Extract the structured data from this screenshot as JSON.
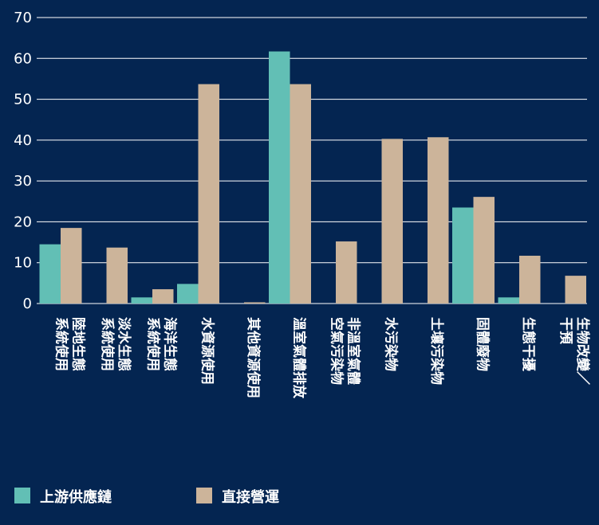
{
  "chart_data": {
    "type": "bar",
    "ylim": [
      0,
      70
    ],
    "yticks": [
      0,
      10,
      20,
      30,
      40,
      50,
      60,
      70
    ],
    "grid": true,
    "legend_position": "bottom-left",
    "categories": [
      [
        "陸地生態",
        "系統使用"
      ],
      [
        "淡水生態",
        "系統使用"
      ],
      [
        "海洋生態",
        "系統使用"
      ],
      [
        "水資源使用"
      ],
      [
        "其他資源使用"
      ],
      [
        "溫室氣體排放"
      ],
      [
        "非溫室氣體",
        "空氣污染物"
      ],
      [
        "水污染物"
      ],
      [
        "土壤污染物"
      ],
      [
        "固體廢物"
      ],
      [
        "生態干擾"
      ],
      [
        "生物改變／",
        "干預"
      ]
    ],
    "series": [
      {
        "name": "上游供應鏈",
        "color": "#62bfb5",
        "values": [
          14.5,
          0,
          1.5,
          4.8,
          0,
          61.7,
          0,
          0,
          0,
          23.5,
          1.5,
          0
        ]
      },
      {
        "name": "直接營運",
        "color": "#ccb49a",
        "values": [
          18.5,
          13.7,
          3.5,
          53.7,
          0.3,
          53.7,
          15.2,
          40.3,
          40.7,
          26.1,
          11.7,
          6.8
        ]
      }
    ]
  }
}
